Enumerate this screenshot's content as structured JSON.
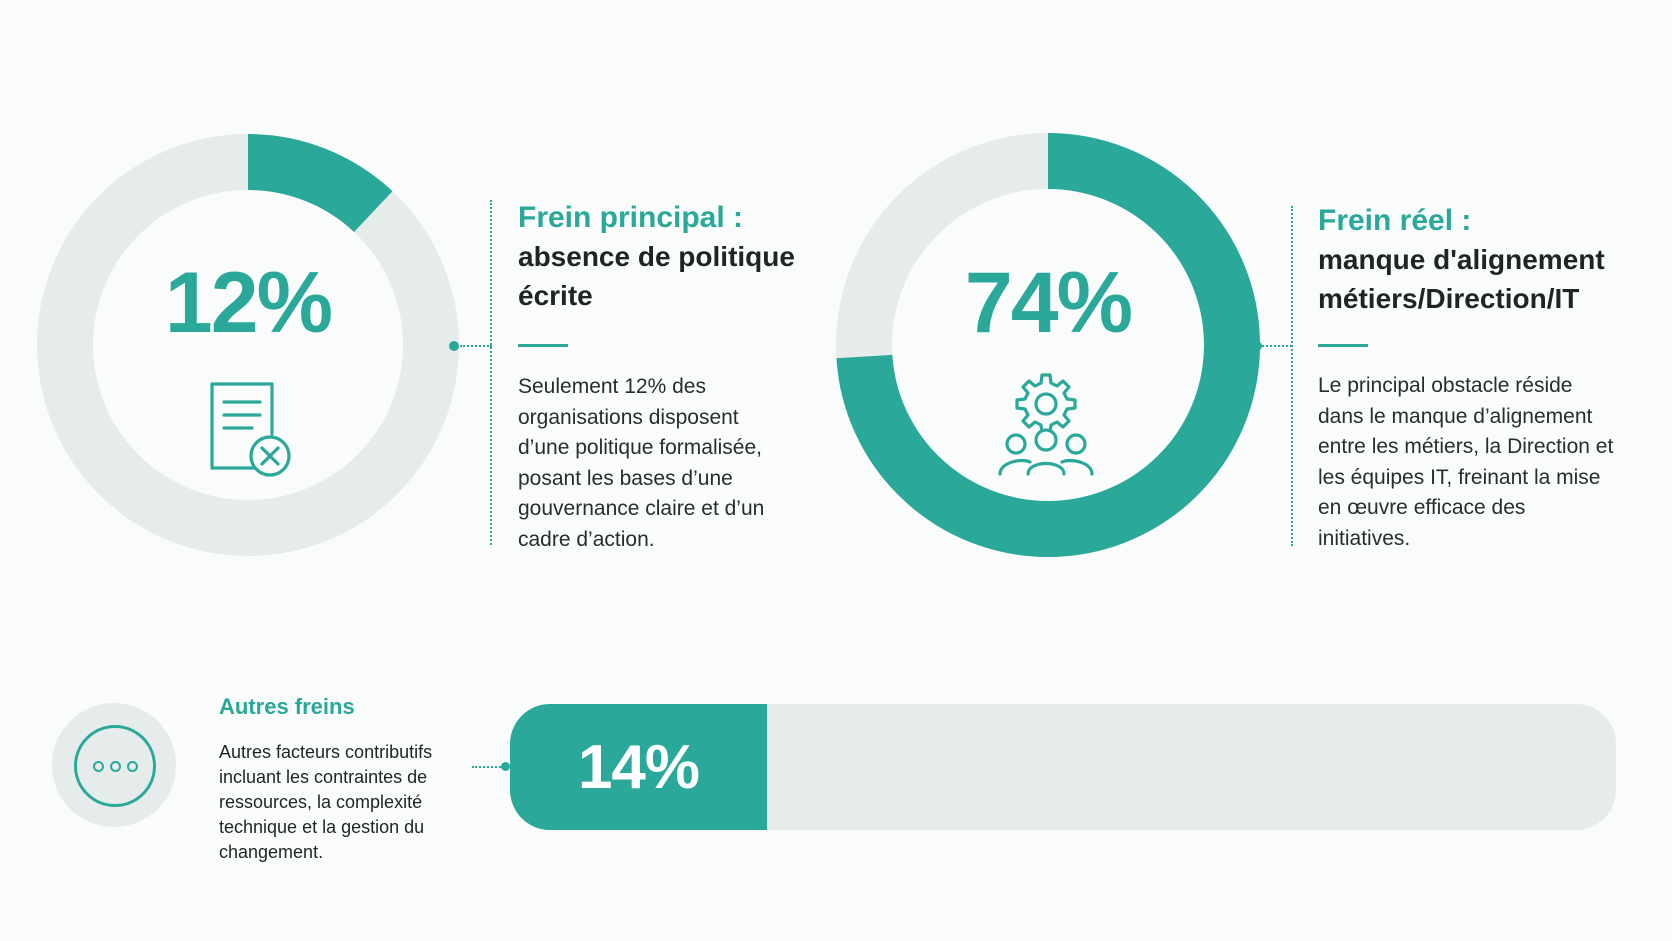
{
  "colors": {
    "accent": "#2aa899",
    "track": "#e6eceb",
    "text": "#1e2624",
    "background": "#fafbfb"
  },
  "chart_data": [
    {
      "type": "pie",
      "subtype": "donut",
      "value_label": "12%",
      "values": [
        12,
        88
      ],
      "icon": "document-cross-icon",
      "heading_accent": "Frein principal :",
      "heading_main": "absence de politique écrite",
      "body": "Seulement 12% des organisations disposent d’une politique formalisée, posant les bases d’une gouvernance claire et d’un cadre d’action."
    },
    {
      "type": "pie",
      "subtype": "donut",
      "value_label": "74%",
      "values": [
        74,
        26
      ],
      "icon": "team-gear-icon",
      "heading_accent": "Frein réel :",
      "heading_main": "manque d'alignement métiers/Direction/IT",
      "body": "Le principal obstacle réside dans le manque d’alignement entre les métiers, la Direction et les équipes IT, freinant la mise en œuvre efficace des initiatives."
    },
    {
      "type": "bar",
      "orientation": "horizontal",
      "value_label": "14%",
      "value": 14,
      "icon": "more-dots-icon",
      "title": "Autres freins",
      "body": "Autres facteurs contributifs incluant les contraintes de ressources, la complexité technique et la gestion du changement."
    }
  ]
}
